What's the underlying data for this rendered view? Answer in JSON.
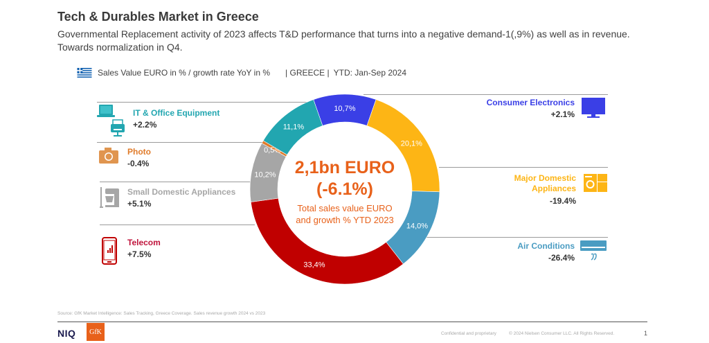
{
  "header": {
    "title": "Tech & Durables Market in Greece",
    "subtitle": "Governmental Replacement activity of 2023 affects T&D performance that turns into a negative demand-1(,9%) as well as in revenue. Towards normalization in Q4."
  },
  "legend": {
    "icon": "greece-flag-icon",
    "metric": "Sales Value EURO in % / growth rate YoY in %",
    "country": "| GREECE |",
    "period": "YTD: Jan-Sep 2024"
  },
  "center": {
    "value": "2,1bn EURO",
    "growth": "(-6.1%)",
    "caption_line1": "Total sales value EURO",
    "caption_line2": "and growth % YTD 2023"
  },
  "chart_data": {
    "type": "pie",
    "subtype": "donut",
    "title": "Sales Value EURO in % / growth rate YoY in %",
    "segments": [
      {
        "name": "Consumer Electronics",
        "share": 10.7,
        "label": "10,7%",
        "growth": "+2.1%",
        "color": "#3A3FE6",
        "icon": "tv-icon"
      },
      {
        "name": "Major Domestic Appliances",
        "share": 20.1,
        "label": "20,1%",
        "growth": "-19.4%",
        "color": "#FDB515",
        "icon": "washing-machine-icon"
      },
      {
        "name": "Air Conditions",
        "share": 14.0,
        "label": "14,0%",
        "growth": "-26.4%",
        "color": "#4A9CC2",
        "icon": "air-conditioner-icon"
      },
      {
        "name": "Telecom",
        "share": 33.4,
        "label": "33,4%",
        "growth": "+7.5%",
        "color": "#C00000",
        "icon": "smartphone-icon"
      },
      {
        "name": "Small Domestic Appliances",
        "share": 10.2,
        "label": "10,2%",
        "growth": "+5.1%",
        "color": "#A6A6A6",
        "icon": "mixer-icon"
      },
      {
        "name": "Photo",
        "share": 0.5,
        "label": "0,5%",
        "growth": "-0.4%",
        "color": "#E07B2A",
        "icon": "camera-icon"
      },
      {
        "name": "IT & Office Equipment",
        "share": 11.1,
        "label": "11,1%",
        "growth": "+2.2%",
        "color": "#22A6B0",
        "icon": "laptop-printer-icon"
      }
    ]
  },
  "footer": {
    "source": "Source: GfK Market Intelligence: Sales Tracking, Greece Coverage. Sales revenue growth 2024 vs 2023",
    "logo_niq": "NIQ",
    "logo_gfk": "GfK",
    "confidential": "Confidential and proprietary",
    "copyright": "© 2024 Nielsen Consumer LLC. All Rights Reserved.",
    "page": "1"
  }
}
